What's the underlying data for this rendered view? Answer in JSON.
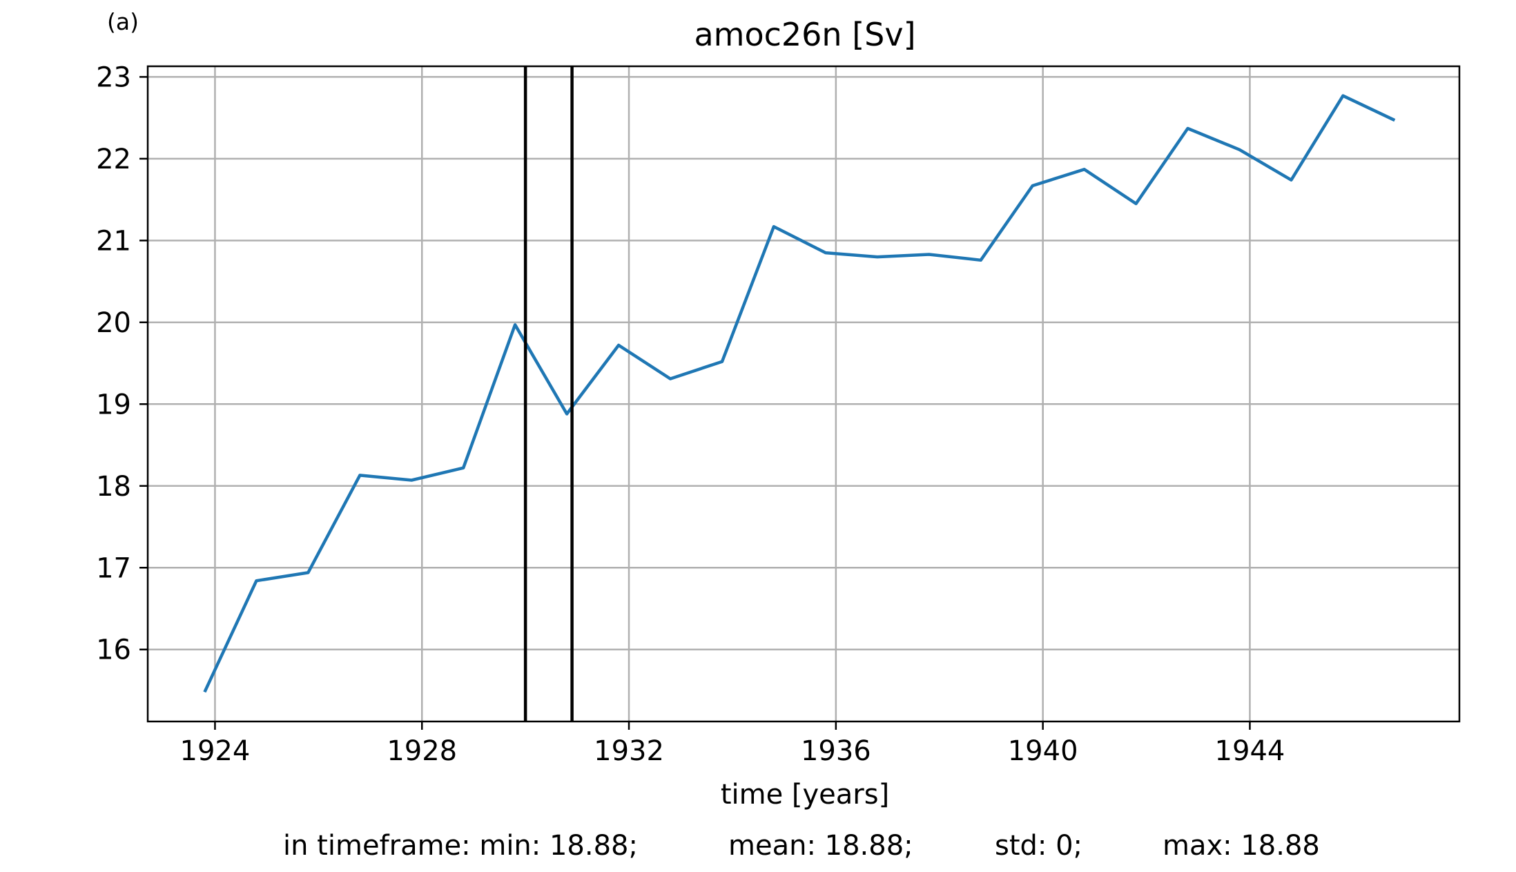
{
  "panel_label": "(a)",
  "stats": {
    "min": "in timeframe: min: 18.88;",
    "mean": "mean: 18.88;",
    "std": "std: 0;",
    "max": "max: 18.88"
  },
  "colors": {
    "series": "#1f77b4",
    "grid": "#b0b0b0",
    "marker": "#000000"
  },
  "chart_data": {
    "type": "line",
    "title": "amoc26n [Sv]",
    "xlabel": "time [years]",
    "ylabel": "",
    "xlim": [
      1922.7,
      1948.05
    ],
    "ylim": [
      15.12,
      23.13
    ],
    "xticks": [
      1924,
      1928,
      1932,
      1936,
      1940,
      1944
    ],
    "yticks": [
      16,
      17,
      18,
      19,
      20,
      21,
      22,
      23
    ],
    "grid": true,
    "vlines": [
      1930.0,
      1930.9
    ],
    "series": [
      {
        "x": [
          1923.8,
          1924.8,
          1925.8,
          1926.8,
          1927.8,
          1928.8,
          1929.8,
          1930.8,
          1931.8,
          1932.8,
          1933.8,
          1934.8,
          1935.8,
          1936.8,
          1937.8,
          1938.8,
          1939.8,
          1940.8,
          1941.8,
          1942.8,
          1943.8,
          1944.8,
          1945.8,
          1946.8
        ],
        "values": [
          15.48,
          16.84,
          16.94,
          18.13,
          18.07,
          18.22,
          19.97,
          18.88,
          19.72,
          19.31,
          19.52,
          21.17,
          20.85,
          20.8,
          20.83,
          20.76,
          21.67,
          21.87,
          21.45,
          22.37,
          22.11,
          21.74,
          22.77,
          22.47
        ]
      }
    ]
  }
}
